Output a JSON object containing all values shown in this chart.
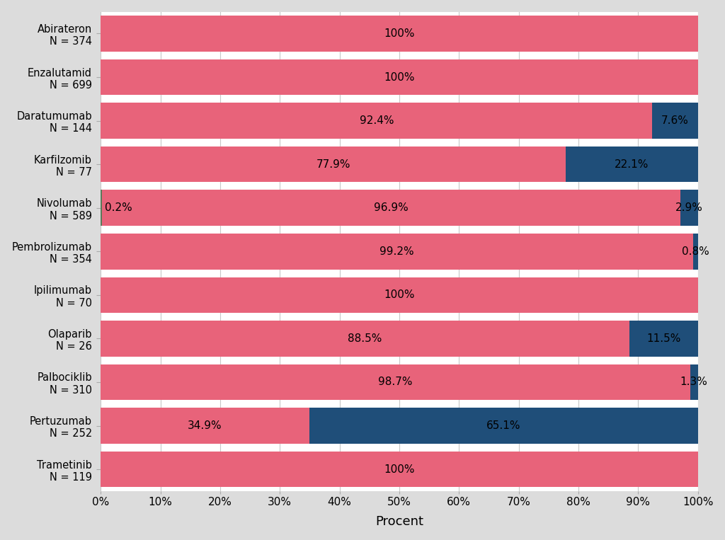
{
  "drugs": [
    "Abirateron\nN = 374",
    "Enzalutamid\nN = 699",
    "Daratumumab\nN = 144",
    "Karfilzomib\nN = 77",
    "Nivolumab\nN = 589",
    "Pembrolizumab\nN = 354",
    "Ipilimumab\nN = 70",
    "Olaparib\nN = 26",
    "Palbociklib\nN = 310",
    "Pertuzumab\nN = 252",
    "Trametinib\nN = 119"
  ],
  "palliativ": [
    100.0,
    100.0,
    92.4,
    77.9,
    96.9,
    99.2,
    100.0,
    88.5,
    98.7,
    34.9,
    100.0
  ],
  "kurativ": [
    0.0,
    0.0,
    7.6,
    22.1,
    2.9,
    0.8,
    0.0,
    11.5,
    1.3,
    65.1,
    0.0
  ],
  "remission": [
    0.0,
    0.0,
    0.0,
    0.0,
    0.2,
    0.0,
    0.0,
    0.0,
    0.0,
    0.0,
    0.0
  ],
  "palliativ_labels": [
    "100%",
    "100%",
    "92.4%",
    "77.9%",
    "96.9%",
    "99.2%",
    "100%",
    "88.5%",
    "98.7%",
    "34.9%",
    "100%"
  ],
  "kurativ_labels": [
    "",
    "",
    "7.6%",
    "22.1%",
    "2.9%",
    "0.8%",
    "",
    "11.5%",
    "1.3%",
    "65.1%",
    ""
  ],
  "remission_labels": [
    "",
    "",
    "",
    "",
    "0.2%",
    "",
    "",
    "",
    "",
    "",
    ""
  ],
  "color_palliativ": "#e8637a",
  "color_kurativ": "#1f4e79",
  "color_remission": "#5a7a5a",
  "outer_background": "#dcdcdc",
  "plot_background": "#ffffff",
  "grid_color": "#c8c8c8",
  "xlabel": "Procent",
  "xlabel_fontsize": 13,
  "tick_fontsize": 11,
  "label_fontsize": 11,
  "drug_fontsize": 10.5,
  "bar_height": 0.82,
  "xlim": [
    0,
    100
  ]
}
